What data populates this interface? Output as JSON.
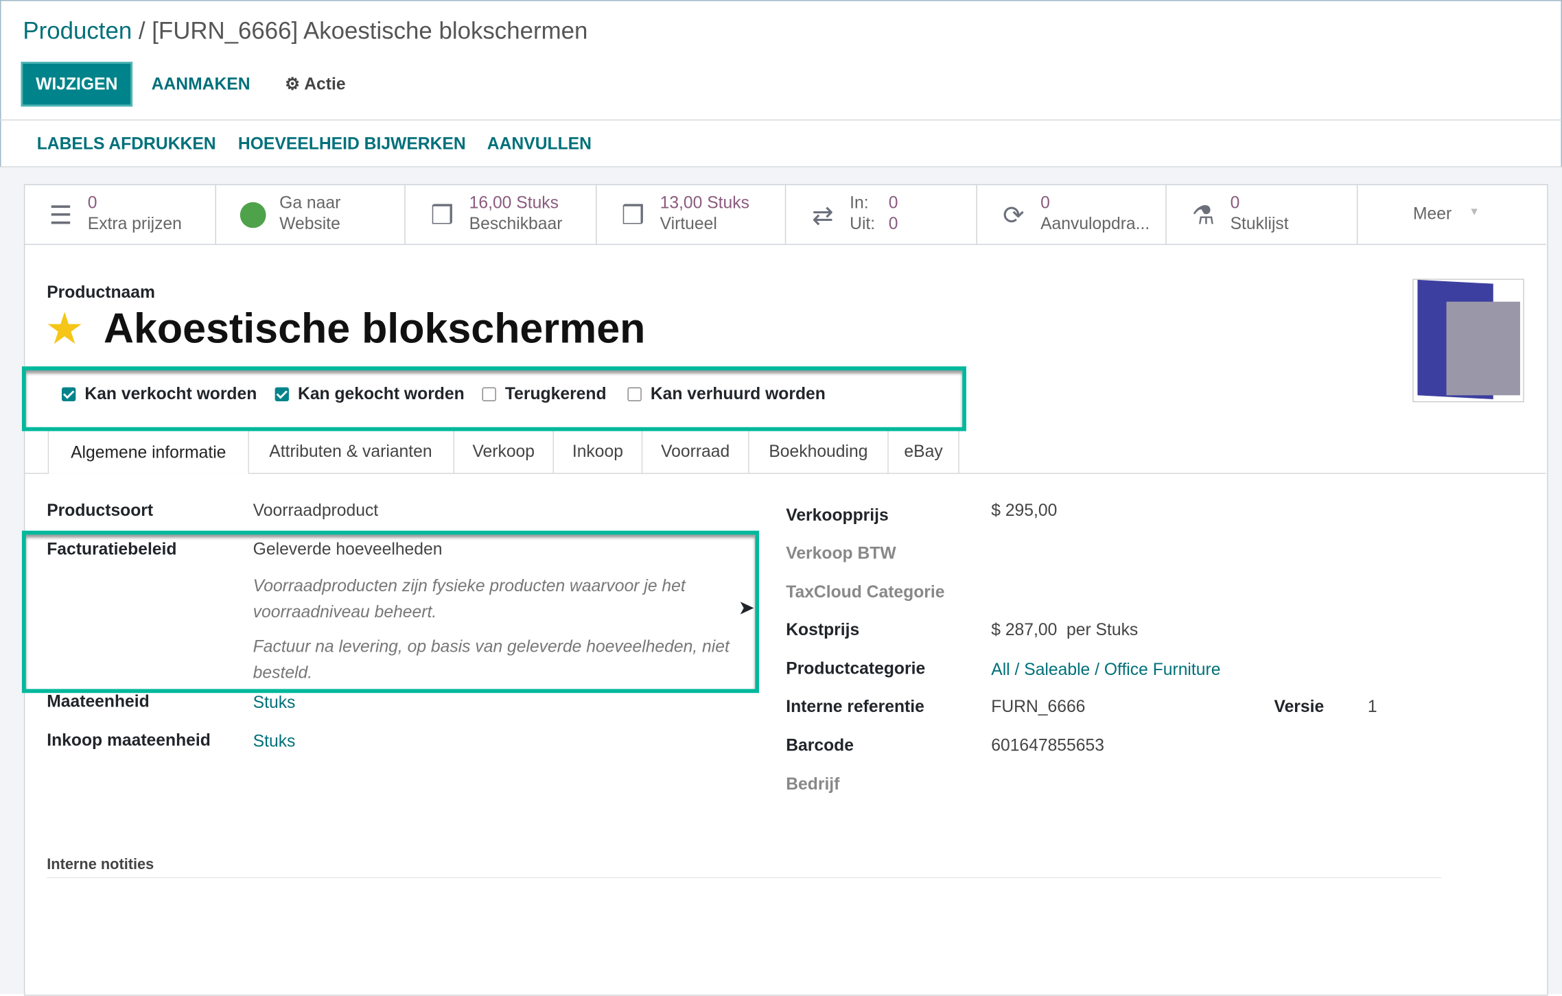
{
  "breadcrumb": {
    "parent": "Producten",
    "separator": " / ",
    "current": "[FURN_6666] Akoestische blokschermen"
  },
  "toolbar": {
    "edit": "WIJZIGEN",
    "create": "AANMAKEN",
    "action": "Actie"
  },
  "actions": [
    "LABELS AFDRUKKEN",
    "HOEVEELHEID BIJWERKEN",
    "AANVULLEN"
  ],
  "stats": [
    {
      "icon": "list-icon",
      "value": "0",
      "label": "Extra prijzen"
    },
    {
      "icon": "globe-icon",
      "value": "Ga naar",
      "label": "Website"
    },
    {
      "icon": "cubes-icon",
      "value": "16,00 Stuks",
      "label": "Beschikbaar"
    },
    {
      "icon": "cubes-icon",
      "value": "13,00 Stuks",
      "label": "Virtueel"
    },
    {
      "icon": "exchange-icon",
      "in_label": "In:",
      "in_value": "0",
      "out_label": "Uit:",
      "out_value": "0"
    },
    {
      "icon": "refresh-icon",
      "value": "0",
      "label": "Aanvulopdra..."
    },
    {
      "icon": "flask-icon",
      "value": "0",
      "label": "Stuklijst"
    },
    {
      "label": "Meer"
    }
  ],
  "product": {
    "name_label": "Productnaam",
    "name": "Akoestische blokschermen",
    "favorite": true
  },
  "options": [
    {
      "label": "Kan verkocht worden",
      "checked": true
    },
    {
      "label": "Kan gekocht worden",
      "checked": true
    },
    {
      "label": "Terugkerend",
      "checked": false
    },
    {
      "label": "Kan verhuurd worden",
      "checked": false
    }
  ],
  "tabs": [
    "Algemene informatie",
    "Attributen & varianten",
    "Verkoop",
    "Inkoop",
    "Voorraad",
    "Boekhouding",
    "eBay"
  ],
  "left": {
    "type_label": "Productsoort",
    "type": "Voorraadproduct",
    "invoice_label": "Facturatiebeleid",
    "invoice": "Geleverde hoeveelheden",
    "help1": "Voorraadproducten zijn fysieke producten waarvoor je het voorraadniveau beheert.",
    "help2": "Factuur na levering, op basis van geleverde hoeveelheden, niet besteld.",
    "uom_label": "Maateenheid",
    "uom": "Stuks",
    "puom_label": "Inkoop maateenheid",
    "puom": "Stuks"
  },
  "right": {
    "price_label": "Verkoopprijs",
    "price": "$ 295,00",
    "tax_label": "Verkoop BTW",
    "taxcloud_label": "TaxCloud Categorie",
    "cost_label": "Kostprijs",
    "cost": "$ 287,00",
    "cost_unit": "per Stuks",
    "categ_label": "Productcategorie",
    "categ": "All / Saleable / Office Furniture",
    "ref_label": "Interne referentie",
    "ref": "FURN_6666",
    "version_label": "Versie",
    "version": "1",
    "barcode_label": "Barcode",
    "barcode": "601647855653",
    "company_label": "Bedrijf"
  },
  "notes_label": "Interne notities",
  "colors": {
    "brand": "#00838a",
    "highlight": "#00b89c",
    "stat_value": "#8a5b7e"
  }
}
